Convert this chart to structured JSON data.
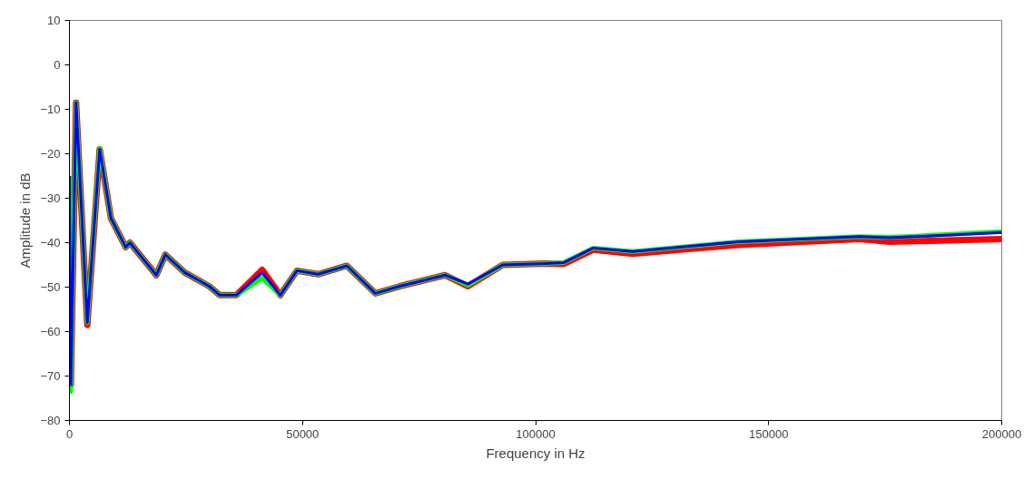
{
  "chart_data": {
    "type": "line",
    "xlabel": "Frequency in Hz",
    "ylabel": "Amplitude in dB",
    "x": [
      0,
      300,
      1420,
      3830,
      6490,
      8900,
      12070,
      12980,
      18630,
      20580,
      24730,
      29980,
      32260,
      35820,
      41340,
      45230,
      48810,
      53350,
      59520,
      65620,
      70870,
      80610,
      85480,
      92930,
      102000,
      106000,
      112340,
      120850,
      143500,
      169500,
      176000,
      200000
    ],
    "series": [
      {
        "color": "#ff0000",
        "values": [
          -25,
          -72,
          -8.5,
          -58.5,
          -19,
          -34.5,
          -41,
          -40,
          -47.3,
          -42.7,
          -46.7,
          -49.8,
          -51.8,
          -51.8,
          -46.1,
          -51.8,
          -46.3,
          -47.1,
          -45.2,
          -51.4,
          -49.8,
          -47.3,
          -49.8,
          -45,
          -44.7,
          -44.8,
          -41.6,
          -42.5,
          -40.5,
          -39.2,
          -39.8,
          -39.2
        ]
      },
      {
        "color": "#00ff00",
        "values": [
          -25,
          -73.5,
          -8.5,
          -58,
          -18.8,
          -34.5,
          -41,
          -40,
          -47.3,
          -42.7,
          -46.7,
          -49.8,
          -51.8,
          -51.8,
          -48,
          -51.8,
          -46.3,
          -47.1,
          -45.2,
          -51.4,
          -49.8,
          -47.3,
          -49.6,
          -45,
          -44.7,
          -44.5,
          -41.2,
          -42,
          -39.8,
          -38.6,
          -38.8,
          -37.5
        ]
      },
      {
        "color": "#0000ff",
        "values": [
          -25,
          -72,
          -8.5,
          -58,
          -19,
          -34.5,
          -41,
          -40,
          -47.3,
          -42.7,
          -46.7,
          -49.8,
          -51.8,
          -51.8,
          -46.7,
          -51.8,
          -46.3,
          -47.1,
          -45.2,
          -51.4,
          -49.8,
          -47.3,
          -49.3,
          -45,
          -44.7,
          -44.5,
          -41.2,
          -42,
          -39.8,
          -38.6,
          -38.9,
          -37.7
        ]
      }
    ],
    "xlim": [
      0,
      200000
    ],
    "ylim": [
      -80,
      10
    ],
    "xticks": [
      0,
      50000,
      100000,
      150000,
      200000
    ],
    "yticks": [
      -80,
      -70,
      -60,
      -50,
      -40,
      -30,
      -20,
      -10,
      0,
      10
    ],
    "grid": false,
    "marker": "none",
    "line_style": "solid"
  }
}
